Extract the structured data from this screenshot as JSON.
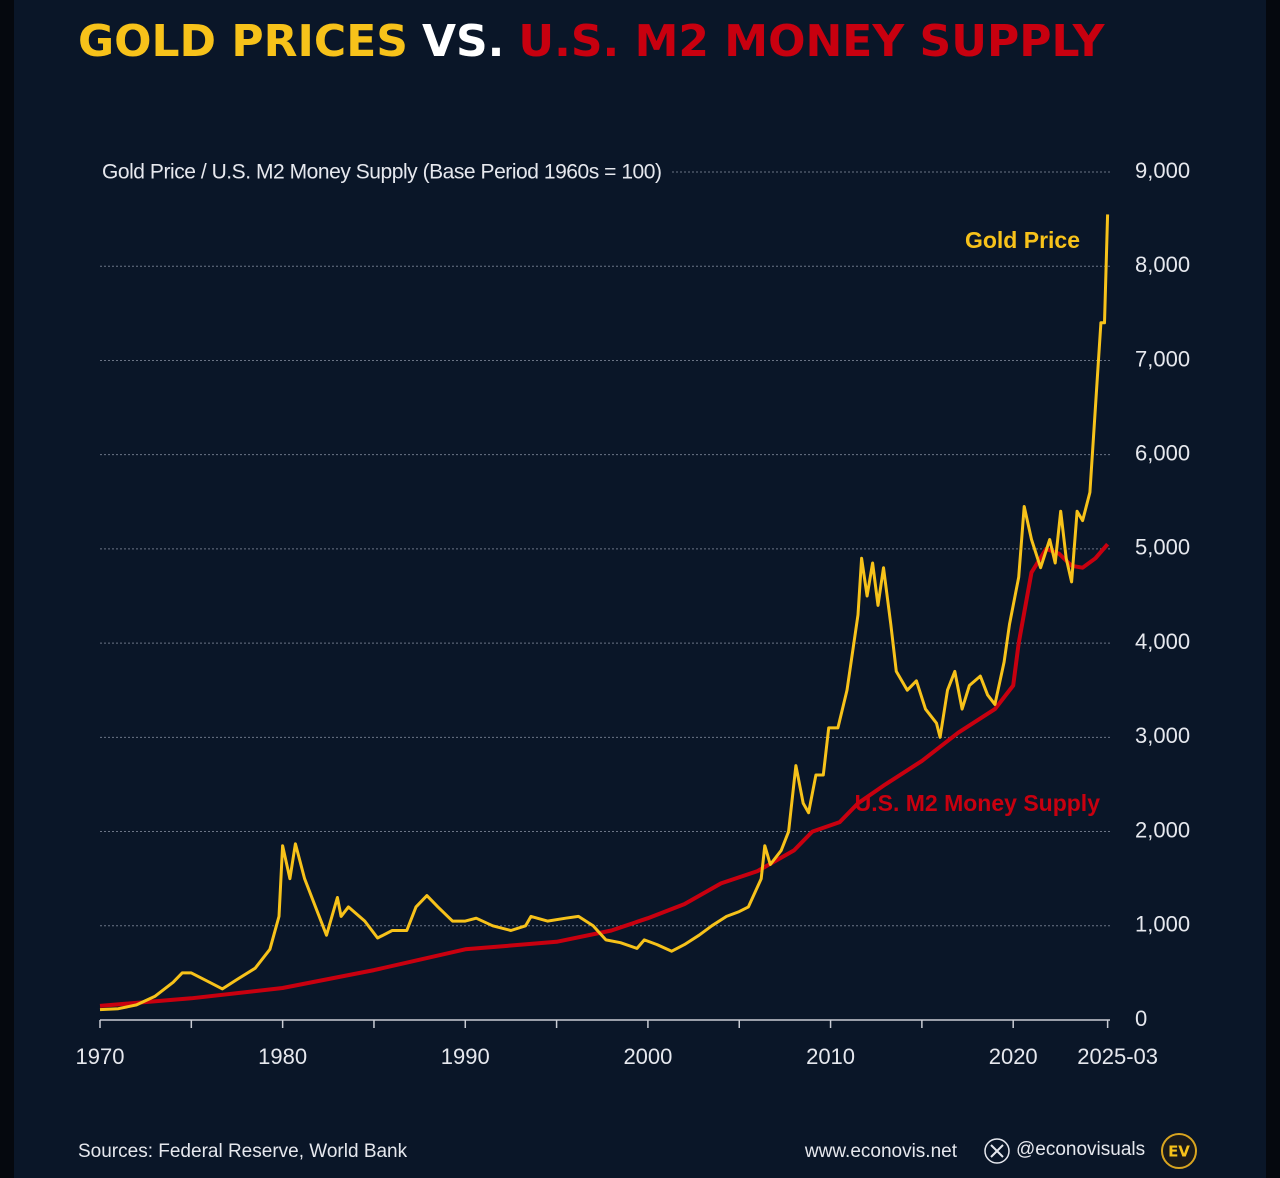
{
  "chart_data": {
    "type": "line",
    "title_parts": [
      {
        "text": "GOLD PRICES",
        "color": "#f7c21a"
      },
      {
        "text": "VS.",
        "color": "#ffffff"
      },
      {
        "text": "U.S. M2 MONEY SUPPLY",
        "color": "#c8000f"
      }
    ],
    "y_axis_label": "Gold Price / U.S. M2 Money Supply (Base Period 1960s = 100)",
    "xlim": [
      1970,
      2025.3
    ],
    "xticks": [
      1970,
      1980,
      1990,
      2000,
      2010,
      2020,
      {
        "value": 2025.17,
        "label": "2025-03"
      }
    ],
    "minor_xticks": [
      1975,
      1985,
      1995,
      2005,
      2015
    ],
    "ylim": [
      0,
      9000
    ],
    "yticks": [
      0,
      {
        "value": 1000,
        "label": "1,000"
      },
      {
        "value": 2000,
        "label": "2,000"
      },
      {
        "value": 3000,
        "label": "3,000"
      },
      {
        "value": 4000,
        "label": "4,000"
      },
      {
        "value": 5000,
        "label": "5,000"
      },
      {
        "value": 6000,
        "label": "6,000"
      },
      {
        "value": 7000,
        "label": "7,000"
      },
      {
        "value": 8000,
        "label": "8,000"
      },
      {
        "value": 9000,
        "label": "9,000"
      }
    ],
    "grid": true,
    "series": [
      {
        "name": "Gold Price",
        "color": "#f7c21a",
        "x": [
          1970,
          1971,
          1972,
          1973,
          1974,
          1974.5,
          1975,
          1976,
          1976.7,
          1977.5,
          1978.5,
          1979.3,
          1979.8,
          1980.0,
          1980.4,
          1980.7,
          1981.2,
          1981.8,
          1982.4,
          1983.0,
          1983.2,
          1983.6,
          1984.5,
          1985.2,
          1986.0,
          1986.8,
          1987.3,
          1987.9,
          1988.5,
          1989.3,
          1990.0,
          1990.6,
          1991.5,
          1992.5,
          1993.3,
          1993.6,
          1994.5,
          1995.5,
          1996.2,
          1997.0,
          1997.7,
          1998.5,
          1999.4,
          1999.8,
          2000.5,
          2001.3,
          2002.0,
          2002.8,
          2003.5,
          2004.3,
          2005.0,
          2005.5,
          2006.2,
          2006.4,
          2006.7,
          2007.3,
          2007.7,
          2008.1,
          2008.5,
          2008.8,
          2009.2,
          2009.6,
          2009.9,
          2010.4,
          2010.9,
          2011.5,
          2011.7,
          2012.0,
          2012.3,
          2012.6,
          2012.9,
          2013.3,
          2013.6,
          2014.2,
          2014.7,
          2015.2,
          2015.8,
          2016.0,
          2016.4,
          2016.8,
          2017.2,
          2017.6,
          2018.2,
          2018.6,
          2019.0,
          2019.5,
          2019.8,
          2020.3,
          2020.6,
          2021.0,
          2021.5,
          2022.0,
          2022.3,
          2022.6,
          2022.9,
          2023.2,
          2023.5,
          2023.8,
          2024.2,
          2024.5,
          2024.8,
          2025.0,
          2025.17
        ],
        "values": [
          110,
          120,
          160,
          250,
          400,
          500,
          500,
          400,
          330,
          430,
          550,
          750,
          1100,
          1850,
          1500,
          1870,
          1500,
          1200,
          900,
          1300,
          1100,
          1200,
          1050,
          870,
          950,
          950,
          1200,
          1320,
          1200,
          1050,
          1050,
          1080,
          1000,
          950,
          1000,
          1100,
          1050,
          1080,
          1100,
          1000,
          850,
          820,
          760,
          850,
          800,
          730,
          800,
          900,
          1000,
          1100,
          1150,
          1200,
          1500,
          1850,
          1650,
          1800,
          2000,
          2700,
          2300,
          2200,
          2600,
          2600,
          3100,
          3100,
          3500,
          4300,
          4900,
          4500,
          4850,
          4400,
          4800,
          4200,
          3700,
          3500,
          3600,
          3300,
          3150,
          3000,
          3500,
          3700,
          3300,
          3550,
          3650,
          3450,
          3350,
          3800,
          4200,
          4700,
          5450,
          5100,
          4800,
          5100,
          4850,
          5400,
          4900,
          4650,
          5400,
          5300,
          5600,
          6500,
          7400,
          7400,
          8550
        ],
        "label_at": "top"
      },
      {
        "name": "U.S. M2 Money Supply",
        "color": "#c8000f",
        "x": [
          1970,
          1975,
          1980,
          1985,
          1990,
          1995,
          1998,
          2000,
          2002,
          2004,
          2006,
          2008,
          2009,
          2010.5,
          2011.5,
          2013,
          2015,
          2017,
          2019,
          2020.0,
          2020.3,
          2021,
          2021.8,
          2022.5,
          2023.2,
          2023.8,
          2024.5,
          2025.17
        ],
        "values": [
          150,
          230,
          340,
          530,
          750,
          830,
          950,
          1080,
          1230,
          1450,
          1580,
          1800,
          2000,
          2100,
          2300,
          2500,
          2750,
          3050,
          3300,
          3550,
          4000,
          4750,
          5000,
          4950,
          4820,
          4800,
          4900,
          5050
        ],
        "label_at": "middle"
      }
    ],
    "footer": {
      "sources": "Sources: Federal Reserve, World Bank",
      "website": "www.econovis.net",
      "handle": "@econovisuals",
      "logo": "EV"
    }
  }
}
